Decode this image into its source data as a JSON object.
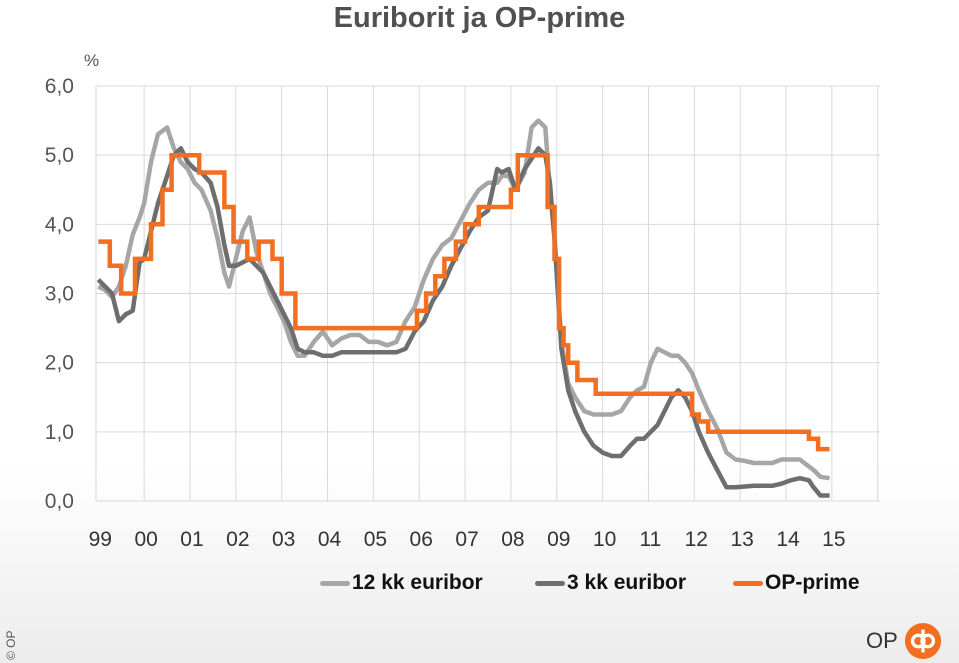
{
  "colors": {
    "euribor12": "#a6a6a6",
    "euribor3": "#6e6e6e",
    "prime": "#f26f21",
    "grid": "#d9d9d9",
    "brand": "#f26f21"
  },
  "copyright": "© OP",
  "brand_text": "OP",
  "chart_data": {
    "type": "line",
    "title": "Euriborit ja OP-prime",
    "ylabel": "%",
    "ylim": [
      0,
      6
    ],
    "xlim": [
      1998.95,
      2016.05
    ],
    "y_ticks": [
      "0,0",
      "1,0",
      "2,0",
      "3,0",
      "4,0",
      "5,0",
      "6,0"
    ],
    "y_tick_values": [
      0,
      1,
      2,
      3,
      4,
      5,
      6
    ],
    "x_ticks": [
      "99",
      "00",
      "01",
      "02",
      "03",
      "04",
      "05",
      "06",
      "07",
      "08",
      "09",
      "10",
      "11",
      "12",
      "13",
      "14",
      "15"
    ],
    "x_gridlines": [
      2000,
      2001,
      2002,
      2003,
      2004,
      2005,
      2006,
      2007,
      2008,
      2009,
      2010,
      2011,
      2012,
      2013,
      2014,
      2015,
      2016
    ],
    "legend": [
      "12 kk euribor",
      "3 kk euribor",
      "OP-prime"
    ],
    "series": [
      {
        "name": "12 kk euribor",
        "x": [
          1999.0,
          1999.15,
          1999.3,
          1999.45,
          1999.6,
          1999.75,
          1999.9,
          2000.0,
          2000.15,
          2000.3,
          2000.5,
          2000.65,
          2000.8,
          2000.95,
          2001.1,
          2001.25,
          2001.45,
          2001.6,
          2001.75,
          2001.85,
          2002.0,
          2002.15,
          2002.3,
          2002.45,
          2002.6,
          2002.75,
          2002.9,
          2003.05,
          2003.2,
          2003.35,
          2003.5,
          2003.7,
          2003.9,
          2004.1,
          2004.3,
          2004.5,
          2004.7,
          2004.9,
          2005.1,
          2005.3,
          2005.5,
          2005.7,
          2005.9,
          2006.1,
          2006.3,
          2006.5,
          2006.7,
          2006.9,
          2007.1,
          2007.3,
          2007.5,
          2007.7,
          2007.8,
          2007.95,
          2008.1,
          2008.3,
          2008.45,
          2008.6,
          2008.75,
          2008.85,
          2008.95,
          2009.1,
          2009.25,
          2009.4,
          2009.6,
          2009.8,
          2010.0,
          2010.2,
          2010.4,
          2010.6,
          2010.75,
          2010.9,
          2011.05,
          2011.2,
          2011.35,
          2011.5,
          2011.65,
          2011.8,
          2011.95,
          2012.1,
          2012.3,
          2012.5,
          2012.7,
          2012.9,
          2013.1,
          2013.3,
          2013.5,
          2013.7,
          2013.9,
          2014.1,
          2014.3,
          2014.5,
          2014.6,
          2014.75,
          2014.95
        ],
        "values": [
          3.1,
          3.05,
          2.95,
          3.1,
          3.4,
          3.85,
          4.1,
          4.3,
          4.9,
          5.3,
          5.4,
          5.1,
          4.9,
          4.8,
          4.6,
          4.5,
          4.2,
          3.8,
          3.3,
          3.1,
          3.5,
          3.9,
          4.1,
          3.6,
          3.3,
          3.0,
          2.8,
          2.6,
          2.3,
          2.1,
          2.1,
          2.3,
          2.45,
          2.25,
          2.35,
          2.4,
          2.4,
          2.3,
          2.3,
          2.25,
          2.3,
          2.6,
          2.8,
          3.2,
          3.5,
          3.7,
          3.8,
          4.05,
          4.3,
          4.5,
          4.6,
          4.6,
          4.7,
          4.7,
          4.5,
          4.75,
          5.4,
          5.5,
          5.4,
          4.5,
          3.8,
          2.3,
          1.7,
          1.5,
          1.3,
          1.25,
          1.25,
          1.25,
          1.3,
          1.5,
          1.6,
          1.65,
          2.0,
          2.2,
          2.15,
          2.1,
          2.1,
          2.0,
          1.85,
          1.6,
          1.3,
          1.05,
          0.7,
          0.6,
          0.58,
          0.55,
          0.55,
          0.55,
          0.6,
          0.6,
          0.6,
          0.5,
          0.45,
          0.35,
          0.33
        ]
      },
      {
        "name": "3 kk euribor",
        "x": [
          1999.0,
          1999.15,
          1999.3,
          1999.45,
          1999.6,
          1999.75,
          1999.9,
          2000.0,
          2000.15,
          2000.3,
          2000.5,
          2000.65,
          2000.8,
          2000.95,
          2001.1,
          2001.25,
          2001.45,
          2001.6,
          2001.75,
          2001.85,
          2002.0,
          2002.15,
          2002.3,
          2002.45,
          2002.6,
          2002.75,
          2002.9,
          2003.05,
          2003.2,
          2003.35,
          2003.5,
          2003.7,
          2003.9,
          2004.1,
          2004.3,
          2004.5,
          2004.7,
          2004.9,
          2005.1,
          2005.3,
          2005.5,
          2005.7,
          2005.9,
          2006.1,
          2006.3,
          2006.5,
          2006.7,
          2006.9,
          2007.1,
          2007.3,
          2007.5,
          2007.7,
          2007.8,
          2007.95,
          2008.1,
          2008.3,
          2008.45,
          2008.6,
          2008.75,
          2008.85,
          2008.95,
          2009.1,
          2009.25,
          2009.4,
          2009.6,
          2009.8,
          2010.0,
          2010.2,
          2010.4,
          2010.6,
          2010.75,
          2010.9,
          2011.05,
          2011.2,
          2011.35,
          2011.5,
          2011.65,
          2011.8,
          2011.95,
          2012.1,
          2012.3,
          2012.5,
          2012.7,
          2012.9,
          2013.1,
          2013.3,
          2013.5,
          2013.7,
          2013.9,
          2014.1,
          2014.3,
          2014.5,
          2014.6,
          2014.75,
          2014.95
        ],
        "values": [
          3.2,
          3.1,
          3.0,
          2.6,
          2.7,
          2.75,
          3.45,
          3.5,
          3.9,
          4.3,
          4.7,
          5.0,
          5.1,
          4.9,
          4.8,
          4.75,
          4.6,
          4.25,
          3.7,
          3.4,
          3.4,
          3.45,
          3.5,
          3.4,
          3.3,
          3.1,
          2.9,
          2.7,
          2.5,
          2.2,
          2.15,
          2.15,
          2.1,
          2.1,
          2.15,
          2.15,
          2.15,
          2.15,
          2.15,
          2.15,
          2.15,
          2.2,
          2.45,
          2.6,
          2.9,
          3.1,
          3.4,
          3.65,
          3.9,
          4.1,
          4.2,
          4.8,
          4.75,
          4.8,
          4.5,
          4.8,
          4.95,
          5.1,
          5.0,
          4.6,
          3.8,
          2.2,
          1.6,
          1.3,
          1.0,
          0.8,
          0.7,
          0.65,
          0.65,
          0.8,
          0.9,
          0.9,
          1.0,
          1.1,
          1.3,
          1.5,
          1.6,
          1.5,
          1.3,
          1.0,
          0.7,
          0.45,
          0.2,
          0.2,
          0.21,
          0.22,
          0.22,
          0.22,
          0.25,
          0.3,
          0.33,
          0.3,
          0.2,
          0.08,
          0.08
        ]
      },
      {
        "name": "OP-prime",
        "step": true,
        "x": [
          1999.0,
          1999.25,
          1999.5,
          1999.8,
          2000.15,
          2000.4,
          2000.6,
          2000.8,
          2001.2,
          2001.4,
          2001.75,
          2001.95,
          2002.25,
          2002.5,
          2002.8,
          2003.0,
          2003.3,
          2005.75,
          2005.95,
          2006.15,
          2006.35,
          2006.55,
          2006.8,
          2007.0,
          2007.3,
          2007.8,
          2008.0,
          2008.15,
          2008.5,
          2008.8,
          2008.95,
          2009.05,
          2009.15,
          2009.25,
          2009.45,
          2009.65,
          2009.85,
          2010.0,
          2010.4,
          2010.7,
          2011.0,
          2011.25,
          2011.7,
          2011.95,
          2012.1,
          2012.3,
          2013.0,
          2014.35,
          2014.5,
          2014.7,
          2014.95
        ],
        "values": [
          3.75,
          3.4,
          3.0,
          3.5,
          4.0,
          4.5,
          5.0,
          5.0,
          4.75,
          4.75,
          4.25,
          3.75,
          3.5,
          3.75,
          3.5,
          3.0,
          2.5,
          2.5,
          2.75,
          3.0,
          3.25,
          3.5,
          3.75,
          4.0,
          4.25,
          4.25,
          4.5,
          5.0,
          5.0,
          4.25,
          3.5,
          2.5,
          2.25,
          2.0,
          1.75,
          1.75,
          1.55,
          1.55,
          1.55,
          1.55,
          1.55,
          1.55,
          1.55,
          1.25,
          1.15,
          1.0,
          1.0,
          1.0,
          0.9,
          0.75,
          0.75
        ]
      }
    ]
  }
}
